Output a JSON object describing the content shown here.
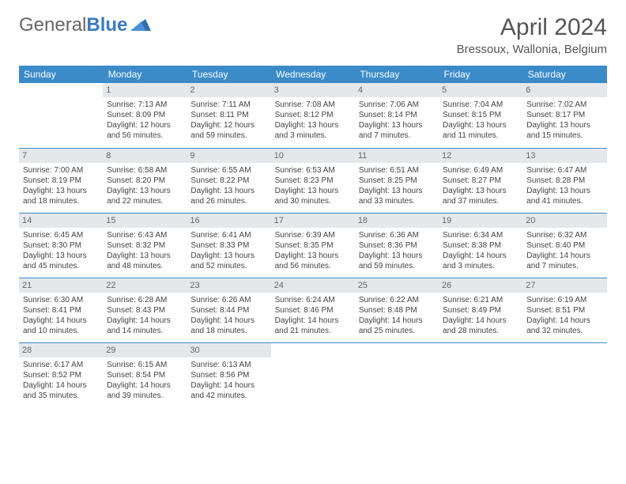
{
  "logo": {
    "text1": "General",
    "text2": "Blue"
  },
  "title": "April 2024",
  "location": "Bressoux, Wallonia, Belgium",
  "colors": {
    "header_bg": "#3b8bc9",
    "daynum_bg": "#e5e8ea",
    "rule": "#3b8bc9",
    "logo_gray": "#666666",
    "logo_blue": "#3b7bbf"
  },
  "weekdays": [
    "Sunday",
    "Monday",
    "Tuesday",
    "Wednesday",
    "Thursday",
    "Friday",
    "Saturday"
  ],
  "weeks": [
    [
      {
        "n": "",
        "sr": "",
        "ss": "",
        "dl1": "",
        "dl2": ""
      },
      {
        "n": "1",
        "sr": "Sunrise: 7:13 AM",
        "ss": "Sunset: 8:09 PM",
        "dl1": "Daylight: 12 hours",
        "dl2": "and 56 minutes."
      },
      {
        "n": "2",
        "sr": "Sunrise: 7:11 AM",
        "ss": "Sunset: 8:11 PM",
        "dl1": "Daylight: 12 hours",
        "dl2": "and 59 minutes."
      },
      {
        "n": "3",
        "sr": "Sunrise: 7:08 AM",
        "ss": "Sunset: 8:12 PM",
        "dl1": "Daylight: 13 hours",
        "dl2": "and 3 minutes."
      },
      {
        "n": "4",
        "sr": "Sunrise: 7:06 AM",
        "ss": "Sunset: 8:14 PM",
        "dl1": "Daylight: 13 hours",
        "dl2": "and 7 minutes."
      },
      {
        "n": "5",
        "sr": "Sunrise: 7:04 AM",
        "ss": "Sunset: 8:15 PM",
        "dl1": "Daylight: 13 hours",
        "dl2": "and 11 minutes."
      },
      {
        "n": "6",
        "sr": "Sunrise: 7:02 AM",
        "ss": "Sunset: 8:17 PM",
        "dl1": "Daylight: 13 hours",
        "dl2": "and 15 minutes."
      }
    ],
    [
      {
        "n": "7",
        "sr": "Sunrise: 7:00 AM",
        "ss": "Sunset: 8:19 PM",
        "dl1": "Daylight: 13 hours",
        "dl2": "and 18 minutes."
      },
      {
        "n": "8",
        "sr": "Sunrise: 6:58 AM",
        "ss": "Sunset: 8:20 PM",
        "dl1": "Daylight: 13 hours",
        "dl2": "and 22 minutes."
      },
      {
        "n": "9",
        "sr": "Sunrise: 6:55 AM",
        "ss": "Sunset: 8:22 PM",
        "dl1": "Daylight: 13 hours",
        "dl2": "and 26 minutes."
      },
      {
        "n": "10",
        "sr": "Sunrise: 6:53 AM",
        "ss": "Sunset: 8:23 PM",
        "dl1": "Daylight: 13 hours",
        "dl2": "and 30 minutes."
      },
      {
        "n": "11",
        "sr": "Sunrise: 6:51 AM",
        "ss": "Sunset: 8:25 PM",
        "dl1": "Daylight: 13 hours",
        "dl2": "and 33 minutes."
      },
      {
        "n": "12",
        "sr": "Sunrise: 6:49 AM",
        "ss": "Sunset: 8:27 PM",
        "dl1": "Daylight: 13 hours",
        "dl2": "and 37 minutes."
      },
      {
        "n": "13",
        "sr": "Sunrise: 6:47 AM",
        "ss": "Sunset: 8:28 PM",
        "dl1": "Daylight: 13 hours",
        "dl2": "and 41 minutes."
      }
    ],
    [
      {
        "n": "14",
        "sr": "Sunrise: 6:45 AM",
        "ss": "Sunset: 8:30 PM",
        "dl1": "Daylight: 13 hours",
        "dl2": "and 45 minutes."
      },
      {
        "n": "15",
        "sr": "Sunrise: 6:43 AM",
        "ss": "Sunset: 8:32 PM",
        "dl1": "Daylight: 13 hours",
        "dl2": "and 48 minutes."
      },
      {
        "n": "16",
        "sr": "Sunrise: 6:41 AM",
        "ss": "Sunset: 8:33 PM",
        "dl1": "Daylight: 13 hours",
        "dl2": "and 52 minutes."
      },
      {
        "n": "17",
        "sr": "Sunrise: 6:39 AM",
        "ss": "Sunset: 8:35 PM",
        "dl1": "Daylight: 13 hours",
        "dl2": "and 56 minutes."
      },
      {
        "n": "18",
        "sr": "Sunrise: 6:36 AM",
        "ss": "Sunset: 8:36 PM",
        "dl1": "Daylight: 13 hours",
        "dl2": "and 59 minutes."
      },
      {
        "n": "19",
        "sr": "Sunrise: 6:34 AM",
        "ss": "Sunset: 8:38 PM",
        "dl1": "Daylight: 14 hours",
        "dl2": "and 3 minutes."
      },
      {
        "n": "20",
        "sr": "Sunrise: 6:32 AM",
        "ss": "Sunset: 8:40 PM",
        "dl1": "Daylight: 14 hours",
        "dl2": "and 7 minutes."
      }
    ],
    [
      {
        "n": "21",
        "sr": "Sunrise: 6:30 AM",
        "ss": "Sunset: 8:41 PM",
        "dl1": "Daylight: 14 hours",
        "dl2": "and 10 minutes."
      },
      {
        "n": "22",
        "sr": "Sunrise: 6:28 AM",
        "ss": "Sunset: 8:43 PM",
        "dl1": "Daylight: 14 hours",
        "dl2": "and 14 minutes."
      },
      {
        "n": "23",
        "sr": "Sunrise: 6:26 AM",
        "ss": "Sunset: 8:44 PM",
        "dl1": "Daylight: 14 hours",
        "dl2": "and 18 minutes."
      },
      {
        "n": "24",
        "sr": "Sunrise: 6:24 AM",
        "ss": "Sunset: 8:46 PM",
        "dl1": "Daylight: 14 hours",
        "dl2": "and 21 minutes."
      },
      {
        "n": "25",
        "sr": "Sunrise: 6:22 AM",
        "ss": "Sunset: 8:48 PM",
        "dl1": "Daylight: 14 hours",
        "dl2": "and 25 minutes."
      },
      {
        "n": "26",
        "sr": "Sunrise: 6:21 AM",
        "ss": "Sunset: 8:49 PM",
        "dl1": "Daylight: 14 hours",
        "dl2": "and 28 minutes."
      },
      {
        "n": "27",
        "sr": "Sunrise: 6:19 AM",
        "ss": "Sunset: 8:51 PM",
        "dl1": "Daylight: 14 hours",
        "dl2": "and 32 minutes."
      }
    ],
    [
      {
        "n": "28",
        "sr": "Sunrise: 6:17 AM",
        "ss": "Sunset: 8:52 PM",
        "dl1": "Daylight: 14 hours",
        "dl2": "and 35 minutes."
      },
      {
        "n": "29",
        "sr": "Sunrise: 6:15 AM",
        "ss": "Sunset: 8:54 PM",
        "dl1": "Daylight: 14 hours",
        "dl2": "and 39 minutes."
      },
      {
        "n": "30",
        "sr": "Sunrise: 6:13 AM",
        "ss": "Sunset: 8:56 PM",
        "dl1": "Daylight: 14 hours",
        "dl2": "and 42 minutes."
      },
      {
        "n": "",
        "sr": "",
        "ss": "",
        "dl1": "",
        "dl2": ""
      },
      {
        "n": "",
        "sr": "",
        "ss": "",
        "dl1": "",
        "dl2": ""
      },
      {
        "n": "",
        "sr": "",
        "ss": "",
        "dl1": "",
        "dl2": ""
      },
      {
        "n": "",
        "sr": "",
        "ss": "",
        "dl1": "",
        "dl2": ""
      }
    ]
  ]
}
